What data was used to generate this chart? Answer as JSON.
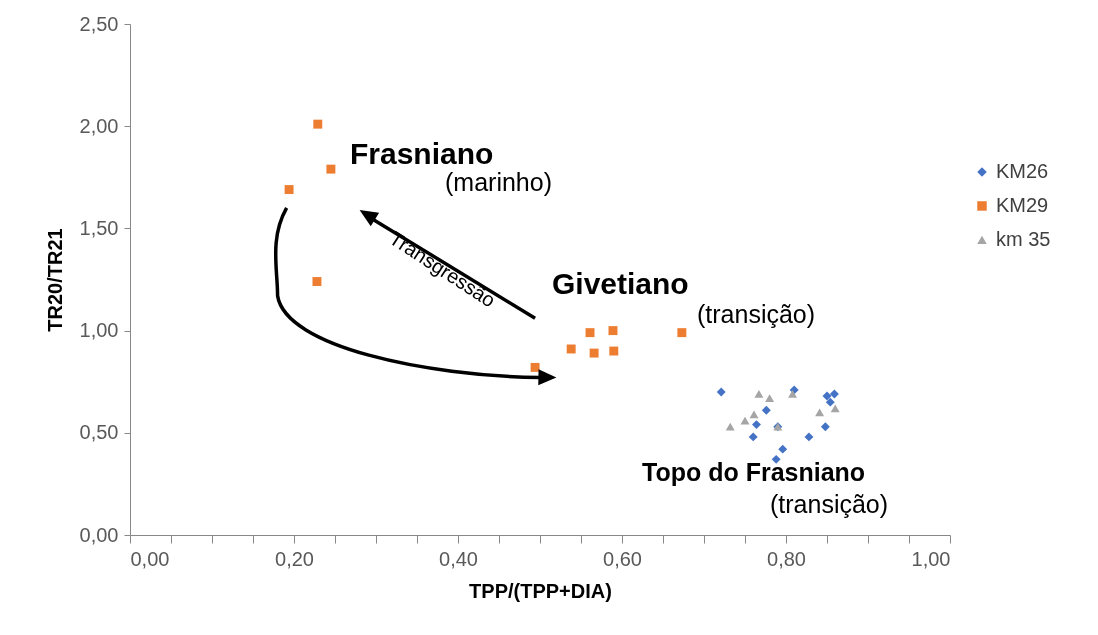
{
  "chart_data": {
    "type": "scatter",
    "xlabel": "TPP/(TPP+DIA)",
    "ylabel": "TR20/TR21",
    "xlim": [
      0,
      1
    ],
    "ylim": [
      0,
      2.5
    ],
    "xticks": [
      {
        "value": 0,
        "label": "0,00"
      },
      {
        "value": 0.05,
        "label": null
      },
      {
        "value": 0.1,
        "label": null
      },
      {
        "value": 0.15,
        "label": null
      },
      {
        "value": 0.2,
        "label": "0,20"
      },
      {
        "value": 0.25,
        "label": null
      },
      {
        "value": 0.3,
        "label": null
      },
      {
        "value": 0.35,
        "label": null
      },
      {
        "value": 0.4,
        "label": "0,40"
      },
      {
        "value": 0.45,
        "label": null
      },
      {
        "value": 0.5,
        "label": null
      },
      {
        "value": 0.55,
        "label": null
      },
      {
        "value": 0.6,
        "label": "0,60"
      },
      {
        "value": 0.65,
        "label": null
      },
      {
        "value": 0.7,
        "label": null
      },
      {
        "value": 0.75,
        "label": null
      },
      {
        "value": 0.8,
        "label": "0,80"
      },
      {
        "value": 0.85,
        "label": null
      },
      {
        "value": 0.9,
        "label": null
      },
      {
        "value": 0.95,
        "label": null
      },
      {
        "value": 1,
        "label": "1,00"
      }
    ],
    "yticks": [
      {
        "value": 0,
        "label": "0,00"
      },
      {
        "value": 0.5,
        "label": "0,50"
      },
      {
        "value": 1,
        "label": "1,00"
      },
      {
        "value": 1.5,
        "label": "1,50"
      },
      {
        "value": 2,
        "label": "2,00"
      },
      {
        "value": 2.5,
        "label": "2,50"
      }
    ],
    "grid": false,
    "legend": "right",
    "series": [
      {
        "name": "KM26",
        "color": "#4472c4",
        "marker": "diamond",
        "x": [
          0.721,
          0.81,
          0.85,
          0.859,
          0.854,
          0.776,
          0.764,
          0.79,
          0.76,
          0.848,
          0.828,
          0.796,
          0.788
        ],
        "values": [
          0.7,
          0.71,
          0.68,
          0.69,
          0.65,
          0.61,
          0.54,
          0.53,
          0.48,
          0.53,
          0.48,
          0.42,
          0.37
        ]
      },
      {
        "name": "KM29",
        "color": "#ed7d31",
        "marker": "square",
        "x": [
          0.229,
          0.245,
          0.194,
          0.228,
          0.494,
          0.538,
          0.561,
          0.566,
          0.589,
          0.59,
          0.673
        ],
        "values": [
          2.01,
          1.79,
          1.69,
          1.24,
          0.82,
          0.91,
          0.99,
          0.89,
          1.0,
          0.9,
          0.99
        ]
      },
      {
        "name": "km 35",
        "color": "#a5a5a5",
        "marker": "triangle",
        "x": [
          0.767,
          0.78,
          0.808,
          0.732,
          0.75,
          0.761,
          0.79,
          0.841,
          0.86
        ],
        "values": [
          0.69,
          0.67,
          0.69,
          0.53,
          0.56,
          0.59,
          0.53,
          0.6,
          0.62
        ]
      }
    ],
    "annotations": [
      "Frasniano",
      "(marinho)",
      "Givetiano",
      "(transição)",
      "Topo do Frasniano",
      "(transição)",
      "Transgressão"
    ]
  }
}
